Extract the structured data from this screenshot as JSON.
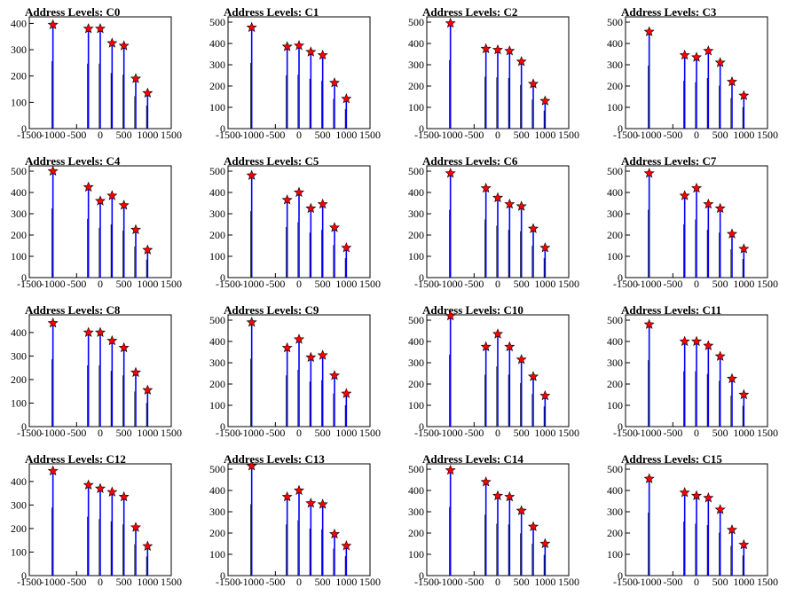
{
  "figure": {
    "xrange": [
      -1500,
      1500
    ],
    "x_ticks": [
      -1500,
      -1000,
      -500,
      0,
      500,
      1000,
      1500
    ],
    "x_tick_labels_text": [
      "-1500",
      "-1000",
      "-500",
      "0",
      "500",
      "1000",
      "1500"
    ],
    "colors": {
      "spike": "#0000ff",
      "marker_fill": "#ff0000",
      "marker_stroke": "#000000",
      "frame": "#000000"
    }
  },
  "chart_data": [
    {
      "type": "histogram",
      "title": "Address Levels: C0",
      "ylim": [
        0,
        425
      ],
      "yticks": [
        0,
        100,
        200,
        300,
        400
      ],
      "y_tick_labels": [
        "0",
        "100",
        "200",
        "300",
        "400"
      ],
      "peaks": [
        {
          "x": -1000,
          "y": 395
        },
        {
          "x": -250,
          "y": 380
        },
        {
          "x": 0,
          "y": 380
        },
        {
          "x": 250,
          "y": 325
        },
        {
          "x": 500,
          "y": 315
        },
        {
          "x": 750,
          "y": 190
        },
        {
          "x": 1000,
          "y": 135
        }
      ]
    },
    {
      "type": "histogram",
      "title": "Address Levels: C1",
      "ylim": [
        0,
        525
      ],
      "yticks": [
        0,
        100,
        200,
        300,
        400,
        500
      ],
      "y_tick_labels": [
        "0",
        "100",
        "200",
        "300",
        "400",
        "500"
      ],
      "peaks": [
        {
          "x": -1000,
          "y": 475
        },
        {
          "x": -250,
          "y": 385
        },
        {
          "x": 0,
          "y": 390
        },
        {
          "x": 250,
          "y": 360
        },
        {
          "x": 500,
          "y": 345
        },
        {
          "x": 750,
          "y": 215
        },
        {
          "x": 1000,
          "y": 140
        }
      ]
    },
    {
      "type": "histogram",
      "title": "Address Levels: C2",
      "ylim": [
        0,
        525
      ],
      "yticks": [
        0,
        100,
        200,
        300,
        400,
        500
      ],
      "y_tick_labels": [
        "0",
        "100",
        "200",
        "300",
        "400",
        "500"
      ],
      "peaks": [
        {
          "x": -1000,
          "y": 495
        },
        {
          "x": -250,
          "y": 375
        },
        {
          "x": 0,
          "y": 370
        },
        {
          "x": 250,
          "y": 365
        },
        {
          "x": 500,
          "y": 315
        },
        {
          "x": 750,
          "y": 210
        },
        {
          "x": 1000,
          "y": 130
        }
      ]
    },
    {
      "type": "histogram",
      "title": "Address Levels: C3",
      "ylim": [
        0,
        525
      ],
      "yticks": [
        0,
        100,
        200,
        300,
        400,
        500
      ],
      "y_tick_labels": [
        "0",
        "100",
        "200",
        "300",
        "400",
        "500"
      ],
      "peaks": [
        {
          "x": -1000,
          "y": 455
        },
        {
          "x": -250,
          "y": 345
        },
        {
          "x": 0,
          "y": 335
        },
        {
          "x": 250,
          "y": 365
        },
        {
          "x": 500,
          "y": 310
        },
        {
          "x": 750,
          "y": 220
        },
        {
          "x": 1000,
          "y": 155
        }
      ]
    },
    {
      "type": "histogram",
      "title": "Address Levels: C4",
      "ylim": [
        0,
        525
      ],
      "yticks": [
        0,
        100,
        200,
        300,
        400,
        500
      ],
      "y_tick_labels": [
        "0",
        "100",
        "200",
        "300",
        "400",
        "500"
      ],
      "peaks": [
        {
          "x": -1000,
          "y": 500
        },
        {
          "x": -250,
          "y": 425
        },
        {
          "x": 0,
          "y": 360
        },
        {
          "x": 250,
          "y": 385
        },
        {
          "x": 500,
          "y": 340
        },
        {
          "x": 750,
          "y": 225
        },
        {
          "x": 1000,
          "y": 130
        }
      ]
    },
    {
      "type": "histogram",
      "title": "Address Levels: C5",
      "ylim": [
        0,
        525
      ],
      "yticks": [
        0,
        100,
        200,
        300,
        400,
        500
      ],
      "y_tick_labels": [
        "0",
        "100",
        "200",
        "300",
        "400",
        "500"
      ],
      "peaks": [
        {
          "x": -1000,
          "y": 480
        },
        {
          "x": -250,
          "y": 365
        },
        {
          "x": 0,
          "y": 400
        },
        {
          "x": 250,
          "y": 325
        },
        {
          "x": 500,
          "y": 345
        },
        {
          "x": 750,
          "y": 235
        },
        {
          "x": 1000,
          "y": 140
        }
      ]
    },
    {
      "type": "histogram",
      "title": "Address Levels: C6",
      "ylim": [
        0,
        525
      ],
      "yticks": [
        0,
        100,
        200,
        300,
        400,
        500
      ],
      "y_tick_labels": [
        "0",
        "100",
        "200",
        "300",
        "400",
        "500"
      ],
      "peaks": [
        {
          "x": -1000,
          "y": 490
        },
        {
          "x": -250,
          "y": 420
        },
        {
          "x": 0,
          "y": 375
        },
        {
          "x": 250,
          "y": 345
        },
        {
          "x": 500,
          "y": 335
        },
        {
          "x": 750,
          "y": 230
        },
        {
          "x": 1000,
          "y": 140
        }
      ]
    },
    {
      "type": "histogram",
      "title": "Address Levels: C7",
      "ylim": [
        0,
        525
      ],
      "yticks": [
        0,
        100,
        200,
        300,
        400,
        500
      ],
      "y_tick_labels": [
        "0",
        "100",
        "200",
        "300",
        "400",
        "500"
      ],
      "peaks": [
        {
          "x": -1000,
          "y": 490
        },
        {
          "x": -250,
          "y": 385
        },
        {
          "x": 0,
          "y": 420
        },
        {
          "x": 250,
          "y": 345
        },
        {
          "x": 500,
          "y": 325
        },
        {
          "x": 750,
          "y": 205
        },
        {
          "x": 1000,
          "y": 135
        }
      ]
    },
    {
      "type": "histogram",
      "title": "Address Levels: C8",
      "ylim": [
        0,
        475
      ],
      "yticks": [
        0,
        100,
        200,
        300,
        400
      ],
      "y_tick_labels": [
        "0",
        "100",
        "200",
        "300",
        "400"
      ],
      "peaks": [
        {
          "x": -1000,
          "y": 440
        },
        {
          "x": -250,
          "y": 400
        },
        {
          "x": 0,
          "y": 400
        },
        {
          "x": 250,
          "y": 365
        },
        {
          "x": 500,
          "y": 335
        },
        {
          "x": 750,
          "y": 230
        },
        {
          "x": 1000,
          "y": 155
        }
      ]
    },
    {
      "type": "histogram",
      "title": "Address Levels: C9",
      "ylim": [
        0,
        525
      ],
      "yticks": [
        0,
        100,
        200,
        300,
        400,
        500
      ],
      "y_tick_labels": [
        "0",
        "100",
        "200",
        "300",
        "400",
        "500"
      ],
      "peaks": [
        {
          "x": -1000,
          "y": 490
        },
        {
          "x": -250,
          "y": 370
        },
        {
          "x": 0,
          "y": 410
        },
        {
          "x": 250,
          "y": 325
        },
        {
          "x": 500,
          "y": 335
        },
        {
          "x": 750,
          "y": 240
        },
        {
          "x": 1000,
          "y": 155
        }
      ]
    },
    {
      "type": "histogram",
      "title": "Address Levels: C10",
      "ylim": [
        0,
        525
      ],
      "yticks": [
        0,
        100,
        200,
        300,
        400,
        500
      ],
      "y_tick_labels": [
        "0",
        "100",
        "200",
        "300",
        "400",
        "500"
      ],
      "peaks": [
        {
          "x": -1000,
          "y": 520
        },
        {
          "x": -250,
          "y": 375
        },
        {
          "x": 0,
          "y": 435
        },
        {
          "x": 250,
          "y": 375
        },
        {
          "x": 500,
          "y": 315
        },
        {
          "x": 750,
          "y": 235
        },
        {
          "x": 1000,
          "y": 145
        }
      ]
    },
    {
      "type": "histogram",
      "title": "Address Levels: C11",
      "ylim": [
        0,
        525
      ],
      "yticks": [
        0,
        100,
        200,
        300,
        400,
        500
      ],
      "y_tick_labels": [
        "0",
        "100",
        "200",
        "300",
        "400",
        "500"
      ],
      "peaks": [
        {
          "x": -1000,
          "y": 480
        },
        {
          "x": -250,
          "y": 400
        },
        {
          "x": 0,
          "y": 400
        },
        {
          "x": 250,
          "y": 380
        },
        {
          "x": 500,
          "y": 330
        },
        {
          "x": 750,
          "y": 225
        },
        {
          "x": 1000,
          "y": 150
        }
      ]
    },
    {
      "type": "histogram",
      "title": "Address Levels: C12",
      "ylim": [
        0,
        475
      ],
      "yticks": [
        0,
        100,
        200,
        300,
        400
      ],
      "y_tick_labels": [
        "0",
        "100",
        "200",
        "300",
        "400"
      ],
      "peaks": [
        {
          "x": -1000,
          "y": 445
        },
        {
          "x": -250,
          "y": 385
        },
        {
          "x": 0,
          "y": 370
        },
        {
          "x": 250,
          "y": 355
        },
        {
          "x": 500,
          "y": 335
        },
        {
          "x": 750,
          "y": 205
        },
        {
          "x": 1000,
          "y": 125
        }
      ]
    },
    {
      "type": "histogram",
      "title": "Address Levels: C13",
      "ylim": [
        0,
        525
      ],
      "yticks": [
        0,
        100,
        200,
        300,
        400,
        500
      ],
      "y_tick_labels": [
        "0",
        "100",
        "200",
        "300",
        "400",
        "500"
      ],
      "peaks": [
        {
          "x": -1000,
          "y": 515
        },
        {
          "x": -250,
          "y": 370
        },
        {
          "x": 0,
          "y": 400
        },
        {
          "x": 250,
          "y": 340
        },
        {
          "x": 500,
          "y": 335
        },
        {
          "x": 750,
          "y": 195
        },
        {
          "x": 1000,
          "y": 140
        }
      ]
    },
    {
      "type": "histogram",
      "title": "Address Levels: C14",
      "ylim": [
        0,
        525
      ],
      "yticks": [
        0,
        100,
        200,
        300,
        400,
        500
      ],
      "y_tick_labels": [
        "0",
        "100",
        "200",
        "300",
        "400",
        "500"
      ],
      "peaks": [
        {
          "x": -1000,
          "y": 495
        },
        {
          "x": -250,
          "y": 440
        },
        {
          "x": 0,
          "y": 375
        },
        {
          "x": 250,
          "y": 370
        },
        {
          "x": 500,
          "y": 305
        },
        {
          "x": 750,
          "y": 230
        },
        {
          "x": 1000,
          "y": 150
        }
      ]
    },
    {
      "type": "histogram",
      "title": "Address Levels: C15",
      "ylim": [
        0,
        525
      ],
      "yticks": [
        0,
        100,
        200,
        300,
        400,
        500
      ],
      "y_tick_labels": [
        "0",
        "100",
        "200",
        "300",
        "400",
        "500"
      ],
      "peaks": [
        {
          "x": -1000,
          "y": 455
        },
        {
          "x": -250,
          "y": 390
        },
        {
          "x": 0,
          "y": 375
        },
        {
          "x": 250,
          "y": 365
        },
        {
          "x": 500,
          "y": 310
        },
        {
          "x": 750,
          "y": 215
        },
        {
          "x": 1000,
          "y": 145
        }
      ]
    }
  ]
}
